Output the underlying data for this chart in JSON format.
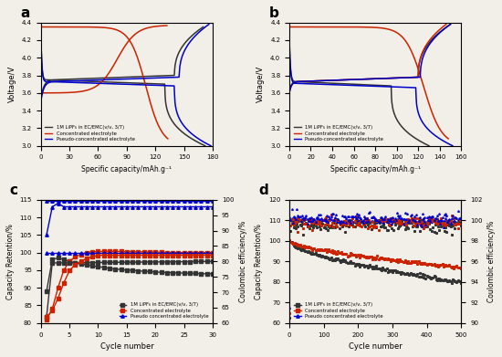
{
  "colors": {
    "black": "#333333",
    "red": "#cc2200",
    "blue": "#0000cc"
  },
  "bg": "#f2efe9",
  "panel_a": {
    "xlabel": "Specific capacity/mAh.g⁻¹",
    "ylabel": "Voltage/V",
    "xlim": [
      0,
      180
    ],
    "ylim": [
      3.0,
      4.4
    ],
    "xticks": [
      0,
      30,
      60,
      90,
      120,
      150,
      180
    ],
    "yticks": [
      3.0,
      3.2,
      3.4,
      3.6,
      3.8,
      4.0,
      4.2,
      4.4
    ],
    "legend": [
      "1M LiPF₆ in EC/EMC(v/v, 3/7)",
      "Concentrated electrolyte",
      "Pseudo-concentrated electrolyte"
    ]
  },
  "panel_b": {
    "xlabel": "Specific capacity/mAh.g⁻¹",
    "ylabel": "Voltage/V",
    "xlim": [
      0,
      160
    ],
    "ylim": [
      3.0,
      4.4
    ],
    "xticks": [
      0,
      20,
      40,
      60,
      80,
      100,
      120,
      140,
      160
    ],
    "yticks": [
      3.0,
      3.2,
      3.4,
      3.6,
      3.8,
      4.0,
      4.2,
      4.4
    ],
    "legend": [
      "1M LiPF₆ in EC/EMC(v/v, 3/7)",
      "Concentrated electrolyte",
      "Pseudo-concentrated electrolyte"
    ]
  },
  "panel_c": {
    "xlabel": "Cycle number",
    "ylabel_left": "Capacity Retention/%",
    "ylabel_right": "Coulombic efficiency/%",
    "xlim": [
      0,
      30
    ],
    "ylim_left": [
      80,
      115
    ],
    "ylim_right": [
      60,
      100
    ],
    "xticks": [
      0,
      5,
      10,
      15,
      20,
      25,
      30
    ],
    "yticks_left": [
      80,
      85,
      90,
      95,
      100,
      105,
      110,
      115
    ],
    "yticks_right": [
      60,
      65,
      70,
      75,
      80,
      85,
      90,
      95,
      100
    ],
    "legend": [
      "1M LiPF₆ in EC/EMC(v/v, 3/7)",
      "Concentrated electrolyte",
      "Pseudo concentrated electrolyte"
    ]
  },
  "panel_d": {
    "xlabel": "Cycle number",
    "ylabel_left": "Capacity Retention/%",
    "ylabel_right": "Coulombic efficiency/%",
    "xlim": [
      0,
      500
    ],
    "ylim_left": [
      60,
      120
    ],
    "ylim_right": [
      90,
      102
    ],
    "xticks": [
      0,
      100,
      200,
      300,
      400,
      500
    ],
    "yticks_left": [
      60,
      70,
      80,
      90,
      100,
      110,
      120
    ],
    "yticks_right": [
      90,
      92,
      94,
      96,
      98,
      100,
      102
    ],
    "legend": [
      "1M LiPF₆ in EC/EMC(v/v, 3/7)",
      "Concentrated electrolyte",
      "Pseudo concentrated electrolyte"
    ]
  }
}
